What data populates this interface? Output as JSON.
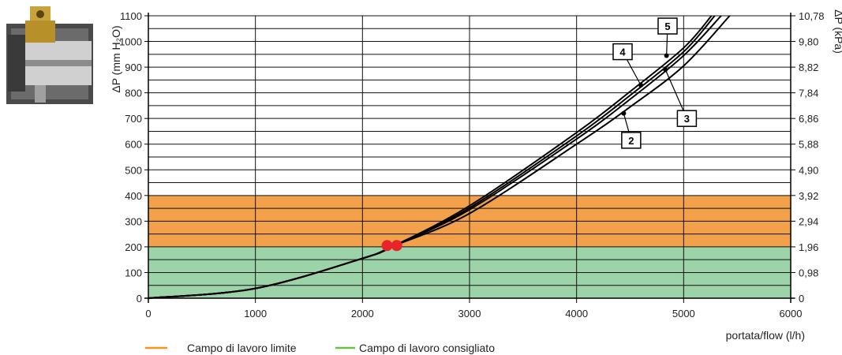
{
  "chart_data": {
    "type": "line",
    "xlabel": "portata/flow (l/h)",
    "ylabel": "ΔP (mm H₂O)",
    "ylabel_right": "ΔP (kPa)",
    "xlim": [
      0,
      6000
    ],
    "ylim": [
      0,
      1100
    ],
    "grid": true,
    "x_ticks": [
      "0",
      "1000",
      "2000",
      "3000",
      "4000",
      "5000",
      "6000"
    ],
    "y_ticks": [
      "0",
      "100",
      "200",
      "300",
      "400",
      "500",
      "600",
      "700",
      "800",
      "900",
      "1000",
      "1100"
    ],
    "y_ticks_right": [
      "0",
      "0,98",
      "1,96",
      "2,94",
      "3,92",
      "4,90",
      "5,88",
      "6,86",
      "7,84",
      "8,82",
      "9,80",
      "10,78"
    ],
    "bands": [
      {
        "name": "Campo di lavoro consigliato",
        "from": 0,
        "to": 200,
        "color": "#9dd3a8"
      },
      {
        "name": "Campo di lavoro limite",
        "from": 200,
        "to": 400,
        "color": "#f2a04a"
      }
    ],
    "legend": [
      {
        "label": "Campo di lavoro limite",
        "color": "#f7941d"
      },
      {
        "label": "Campo di lavoro consigliato",
        "color": "#6cbf4b"
      }
    ],
    "series": [
      {
        "name": "2",
        "x": [
          0,
          1000,
          2000,
          2300,
          3000,
          4000,
          4500,
          5000,
          5430
        ],
        "y": [
          0,
          38,
          155,
          205,
          330,
          600,
          745,
          905,
          1100
        ]
      },
      {
        "name": "3",
        "x": [
          0,
          1000,
          2000,
          2300,
          3000,
          4000,
          4500,
          5000,
          5350
        ],
        "y": [
          0,
          38,
          155,
          205,
          345,
          620,
          775,
          945,
          1100
        ]
      },
      {
        "name": "4",
        "x": [
          0,
          1000,
          2000,
          2300,
          3000,
          4000,
          4500,
          5000,
          5260
        ],
        "y": [
          0,
          38,
          155,
          205,
          360,
          645,
          805,
          975,
          1100
        ]
      },
      {
        "name": "5",
        "x": [
          0,
          1000,
          2000,
          2300,
          3000,
          4000,
          4500,
          5000,
          5290
        ],
        "y": [
          0,
          38,
          155,
          205,
          352,
          632,
          790,
          960,
          1100
        ]
      }
    ],
    "annotations": [
      {
        "label": "5",
        "point": [
          4840,
          945
        ],
        "box": [
          4850,
          1060
        ]
      },
      {
        "label": "4",
        "point": [
          4600,
          830
        ],
        "box": [
          4430,
          960
        ]
      },
      {
        "label": "3",
        "point": [
          4830,
          890
        ],
        "box": [
          5030,
          700
        ]
      },
      {
        "label": "2",
        "point": [
          4440,
          720
        ],
        "box": [
          4510,
          615
        ]
      }
    ],
    "markers": [
      {
        "x": 2230,
        "y": 205,
        "color": "#e8242a"
      },
      {
        "x": 2320,
        "y": 205,
        "color": "#e8242a"
      }
    ],
    "colors": {
      "curve": "#000000",
      "grid": "#111111"
    }
  }
}
